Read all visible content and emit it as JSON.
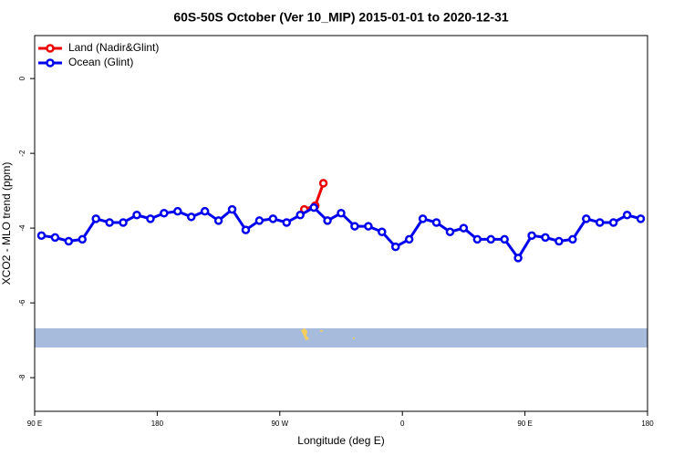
{
  "chart_data": {
    "type": "line",
    "title": "60S-50S October (Ver 10_MIP)   2015-01-01 to 2020-12-31",
    "x_label": "Longitude (deg E)",
    "y_label": "XCO2 - MLO trend (ppm)",
    "xlim": [
      90,
      540
    ],
    "ylim": [
      -8.9,
      1.15
    ],
    "xticks": [
      {
        "value": 90,
        "label": "90 E"
      },
      {
        "value": 180,
        "label": "180"
      },
      {
        "value": 270,
        "label": "90 W"
      },
      {
        "value": 360,
        "label": "0"
      },
      {
        "value": 450,
        "label": "90 E"
      },
      {
        "value": 540,
        "label": "180"
      }
    ],
    "yticks": [
      0,
      -2,
      -4,
      -6,
      -8
    ],
    "legend": "top-left",
    "series": [
      {
        "name": "Land (Nadir&Glint)",
        "color": "#ee0000",
        "x": [
          288,
          296,
          302
        ],
        "values": [
          -3.5,
          -3.4,
          -2.8
        ]
      },
      {
        "name": "Ocean (Glint)",
        "color": "#0000ee",
        "x": [
          95,
          105,
          115,
          125,
          135,
          145,
          155,
          165,
          175,
          185,
          195,
          205,
          215,
          225,
          235,
          245,
          255,
          265,
          275,
          285,
          295,
          305,
          315,
          325,
          335,
          345,
          355,
          365,
          375,
          385,
          395,
          405,
          415,
          425,
          435,
          445,
          455,
          465,
          475,
          485,
          495,
          505,
          515,
          525,
          535
        ],
        "values": [
          -4.2,
          -4.25,
          -4.35,
          -4.3,
          -3.75,
          -3.85,
          -3.85,
          -3.65,
          -3.75,
          -3.6,
          -3.55,
          -3.7,
          -3.55,
          -3.8,
          -3.5,
          -4.05,
          -3.8,
          -3.75,
          -3.85,
          -3.65,
          -3.45,
          -3.8,
          -3.6,
          -3.95,
          -3.95,
          -4.1,
          -4.5,
          -4.3,
          -3.75,
          -3.85,
          -4.1,
          -4.0,
          -4.3,
          -4.3,
          -4.3,
          -4.8,
          -4.2,
          -4.25,
          -4.35,
          -4.3,
          -3.75,
          -3.85,
          -3.85,
          -3.65,
          -3.75
        ]
      }
    ]
  }
}
